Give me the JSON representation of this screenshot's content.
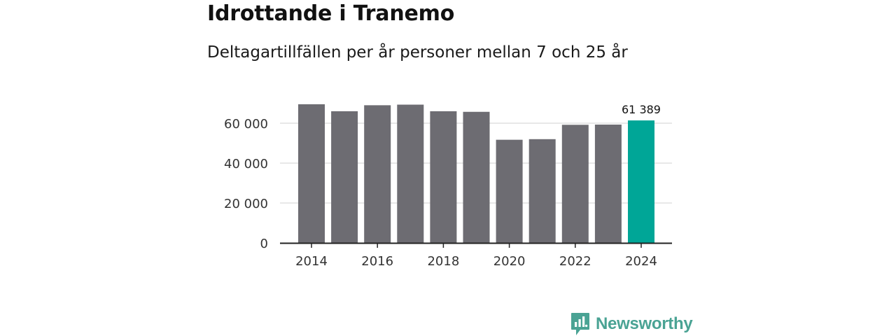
{
  "colors": {
    "bar": "#6d6c72",
    "highlight": "#00a697",
    "grid": "#d9d9d9",
    "axis": "#222222",
    "brand": "#4aa394"
  },
  "brand": {
    "name": "Newsworthy",
    "icon": "newsworthy-logo-icon"
  },
  "chart_data": {
    "type": "bar",
    "title": "Idrottande i Tranemo",
    "subtitle": "Deltagartillfällen per år personer mellan 7 och 25 år",
    "xlabel": "",
    "ylabel": "",
    "categories": [
      "2014",
      "2015",
      "2016",
      "2017",
      "2018",
      "2019",
      "2020",
      "2021",
      "2022",
      "2023",
      "2024"
    ],
    "values": [
      69500,
      66000,
      69000,
      69300,
      66000,
      65700,
      51700,
      52000,
      59200,
      59300,
      61389
    ],
    "highlight_index": 10,
    "highlight_label": "61 389",
    "ylim": [
      0,
      70000
    ],
    "yticks": [
      0,
      20000,
      40000,
      60000
    ],
    "ytick_labels": [
      "0",
      "20 000",
      "40 000",
      "60 000"
    ],
    "xtick_labels": [
      "2014",
      "2016",
      "2018",
      "2020",
      "2022",
      "2024"
    ],
    "grid": true
  }
}
